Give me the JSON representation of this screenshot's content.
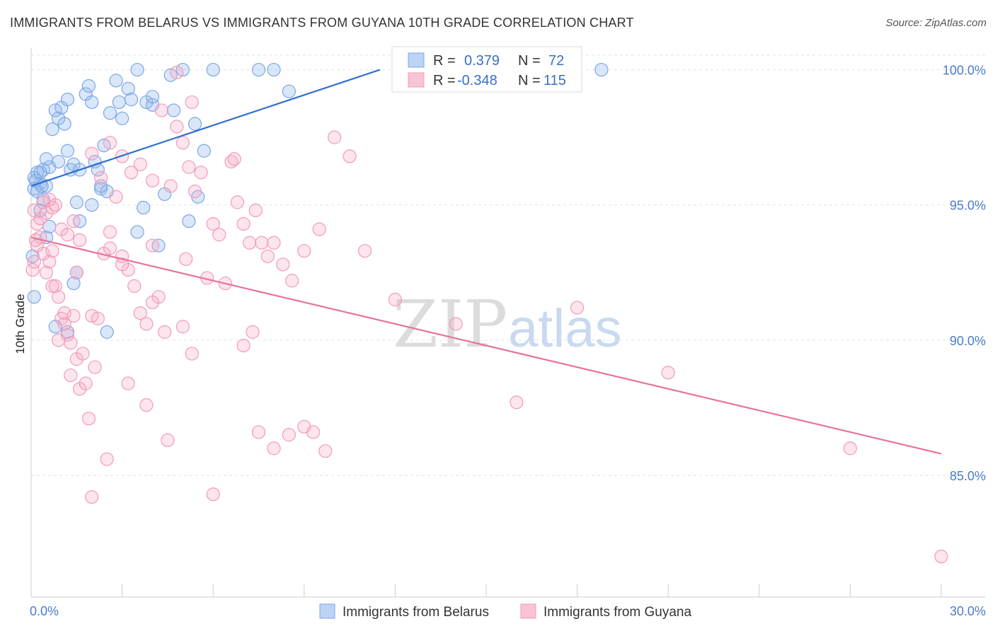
{
  "title": "IMMIGRANTS FROM BELARUS VS IMMIGRANTS FROM GUYANA 10TH GRADE CORRELATION CHART",
  "source": "Source: ZipAtlas.com",
  "watermark": {
    "zip": "ZIP",
    "atlas": "atlas"
  },
  "chart_data": {
    "type": "scatter",
    "title": "IMMIGRANTS FROM BELARUS VS IMMIGRANTS FROM GUYANA 10TH GRADE CORRELATION CHART",
    "xlabel": "",
    "ylabel": "10th Grade",
    "xlim": [
      0,
      30
    ],
    "ylim": [
      80.5,
      100.8
    ],
    "x_tick_labels": [
      "0.0%",
      "30.0%"
    ],
    "y_ticks": [
      85,
      90,
      95,
      100
    ],
    "y_tick_labels": [
      "85.0%",
      "90.0%",
      "95.0%",
      "100.0%"
    ],
    "grid": true,
    "legend_top": [
      {
        "r_label": "R =",
        "r_value": "0.379",
        "n_label": "N =",
        "n_value": "72"
      },
      {
        "r_label": "R =",
        "r_value": "-0.348",
        "n_label": "N =",
        "n_value": "115"
      }
    ],
    "series": [
      {
        "name": "Immigrants from Belarus",
        "color": "#7aa7e8",
        "line_color": "#2f6fd0",
        "trend": {
          "x": [
            0.0,
            11.5
          ],
          "y": [
            95.7,
            100.0
          ]
        },
        "points": [
          [
            0.1,
            95.6
          ],
          [
            0.2,
            96.2
          ],
          [
            0.3,
            95.8
          ],
          [
            0.4,
            96.3
          ],
          [
            0.5,
            95.7
          ],
          [
            0.6,
            96.4
          ],
          [
            0.7,
            97.8
          ],
          [
            0.8,
            98.5
          ],
          [
            0.9,
            98.2
          ],
          [
            1.0,
            98.6
          ],
          [
            1.1,
            98.0
          ],
          [
            1.2,
            97.0
          ],
          [
            1.3,
            96.3
          ],
          [
            1.4,
            96.5
          ],
          [
            1.5,
            95.1
          ],
          [
            1.6,
            94.4
          ],
          [
            1.8,
            99.1
          ],
          [
            1.9,
            99.4
          ],
          [
            2.0,
            98.8
          ],
          [
            2.1,
            96.6
          ],
          [
            2.2,
            96.3
          ],
          [
            2.3,
            95.6
          ],
          [
            2.4,
            97.2
          ],
          [
            2.6,
            98.4
          ],
          [
            2.8,
            99.6
          ],
          [
            2.9,
            98.8
          ],
          [
            3.0,
            98.2
          ],
          [
            3.2,
            99.3
          ],
          [
            3.3,
            98.9
          ],
          [
            3.5,
            100.0
          ],
          [
            3.7,
            94.9
          ],
          [
            3.8,
            98.8
          ],
          [
            4.0,
            98.7
          ],
          [
            4.2,
            93.5
          ],
          [
            4.4,
            95.4
          ],
          [
            4.6,
            99.8
          ],
          [
            4.7,
            98.5
          ],
          [
            5.0,
            100.0
          ],
          [
            5.2,
            94.4
          ],
          [
            5.4,
            98.0
          ],
          [
            5.7,
            97.0
          ],
          [
            5.5,
            95.3
          ],
          [
            0.2,
            95.5
          ],
          [
            0.3,
            94.8
          ],
          [
            0.4,
            95.2
          ],
          [
            0.5,
            93.8
          ],
          [
            0.6,
            94.2
          ],
          [
            0.8,
            90.5
          ],
          [
            1.2,
            90.3
          ],
          [
            1.4,
            92.1
          ],
          [
            1.5,
            92.5
          ],
          [
            2.5,
            90.3
          ],
          [
            2.5,
            95.5
          ],
          [
            0.1,
            91.6
          ],
          [
            0.05,
            93.1
          ],
          [
            0.1,
            96.0
          ],
          [
            0.15,
            95.9
          ],
          [
            0.3,
            96.2
          ],
          [
            0.35,
            95.7
          ],
          [
            0.5,
            96.7
          ],
          [
            0.9,
            96.6
          ],
          [
            1.2,
            98.9
          ],
          [
            1.6,
            96.3
          ],
          [
            2.0,
            95.0
          ],
          [
            2.3,
            95.7
          ],
          [
            3.5,
            94.0
          ],
          [
            4.0,
            99.0
          ],
          [
            8.0,
            100.0
          ],
          [
            6.0,
            100.0
          ],
          [
            7.5,
            100.0
          ],
          [
            18.8,
            100.0
          ],
          [
            8.5,
            99.2
          ]
        ]
      },
      {
        "name": "Immigrants from Guyana",
        "color": "#f29ab8",
        "line_color": "#e8739b",
        "trend": {
          "x": [
            0.0,
            30.0
          ],
          "y": [
            93.8,
            85.8
          ]
        },
        "points": [
          [
            0.1,
            94.8
          ],
          [
            0.2,
            93.5
          ],
          [
            0.3,
            93.8
          ],
          [
            0.4,
            93.2
          ],
          [
            0.5,
            92.5
          ],
          [
            0.6,
            92.9
          ],
          [
            0.7,
            93.3
          ],
          [
            0.8,
            92.0
          ],
          [
            0.9,
            91.6
          ],
          [
            1.0,
            90.8
          ],
          [
            1.1,
            90.6
          ],
          [
            1.2,
            90.2
          ],
          [
            1.3,
            89.9
          ],
          [
            1.4,
            90.9
          ],
          [
            1.5,
            89.3
          ],
          [
            1.6,
            88.2
          ],
          [
            1.7,
            89.5
          ],
          [
            1.8,
            88.4
          ],
          [
            1.9,
            87.1
          ],
          [
            2.0,
            90.9
          ],
          [
            2.2,
            90.8
          ],
          [
            2.4,
            93.2
          ],
          [
            2.6,
            94.0
          ],
          [
            2.8,
            95.3
          ],
          [
            3.0,
            93.1
          ],
          [
            3.2,
            92.6
          ],
          [
            3.4,
            92.0
          ],
          [
            3.6,
            91.0
          ],
          [
            3.8,
            90.6
          ],
          [
            4.0,
            93.5
          ],
          [
            4.2,
            91.6
          ],
          [
            4.4,
            90.3
          ],
          [
            4.6,
            95.7
          ],
          [
            4.8,
            97.9
          ],
          [
            5.0,
            97.3
          ],
          [
            5.2,
            96.4
          ],
          [
            5.4,
            95.5
          ],
          [
            5.6,
            96.2
          ],
          [
            5.8,
            92.3
          ],
          [
            6.0,
            94.3
          ],
          [
            6.2,
            93.9
          ],
          [
            6.4,
            92.1
          ],
          [
            6.6,
            96.6
          ],
          [
            6.8,
            95.1
          ],
          [
            7.0,
            94.3
          ],
          [
            7.2,
            93.6
          ],
          [
            7.4,
            94.8
          ],
          [
            7.6,
            93.6
          ],
          [
            7.8,
            93.1
          ],
          [
            8.0,
            93.6
          ],
          [
            8.3,
            92.8
          ],
          [
            8.6,
            92.2
          ],
          [
            9.0,
            93.3
          ],
          [
            9.5,
            94.1
          ],
          [
            10.0,
            97.5
          ],
          [
            10.5,
            96.8
          ],
          [
            11.0,
            93.3
          ],
          [
            12.0,
            91.5
          ],
          [
            14.0,
            90.6
          ],
          [
            16.0,
            87.7
          ],
          [
            18.0,
            91.2
          ],
          [
            21.0,
            88.8
          ],
          [
            27.0,
            86.0
          ],
          [
            30.0,
            82.0
          ],
          [
            0.05,
            92.6
          ],
          [
            0.1,
            92.9
          ],
          [
            0.15,
            93.7
          ],
          [
            0.2,
            94.3
          ],
          [
            0.3,
            94.5
          ],
          [
            0.4,
            95.1
          ],
          [
            0.5,
            94.7
          ],
          [
            0.6,
            95.2
          ],
          [
            0.7,
            94.9
          ],
          [
            0.8,
            95.0
          ],
          [
            1.0,
            94.1
          ],
          [
            1.2,
            93.9
          ],
          [
            1.4,
            94.4
          ],
          [
            1.6,
            93.7
          ],
          [
            2.0,
            96.9
          ],
          [
            2.3,
            96.0
          ],
          [
            2.6,
            97.3
          ],
          [
            3.0,
            96.8
          ],
          [
            3.3,
            96.2
          ],
          [
            3.6,
            96.5
          ],
          [
            4.0,
            95.9
          ],
          [
            4.3,
            98.5
          ],
          [
            4.8,
            99.9
          ],
          [
            5.3,
            98.8
          ],
          [
            3.2,
            88.4
          ],
          [
            3.8,
            87.6
          ],
          [
            4.5,
            86.3
          ],
          [
            2.5,
            85.6
          ],
          [
            2.0,
            84.2
          ],
          [
            6.0,
            84.3
          ],
          [
            7.5,
            86.6
          ],
          [
            8.0,
            86.0
          ],
          [
            8.5,
            86.5
          ],
          [
            9.0,
            86.8
          ],
          [
            9.3,
            86.6
          ],
          [
            9.7,
            85.9
          ],
          [
            7.0,
            89.8
          ],
          [
            7.3,
            90.3
          ],
          [
            5.0,
            90.5
          ],
          [
            5.3,
            89.5
          ],
          [
            4.0,
            91.4
          ],
          [
            3.0,
            92.8
          ],
          [
            2.6,
            93.4
          ],
          [
            1.5,
            92.5
          ],
          [
            1.1,
            91.0
          ],
          [
            0.9,
            90.0
          ],
          [
            1.3,
            88.7
          ],
          [
            2.1,
            89.0
          ],
          [
            5.1,
            93.0
          ],
          [
            6.7,
            96.7
          ],
          [
            0.7,
            92.0
          ]
        ]
      }
    ]
  }
}
